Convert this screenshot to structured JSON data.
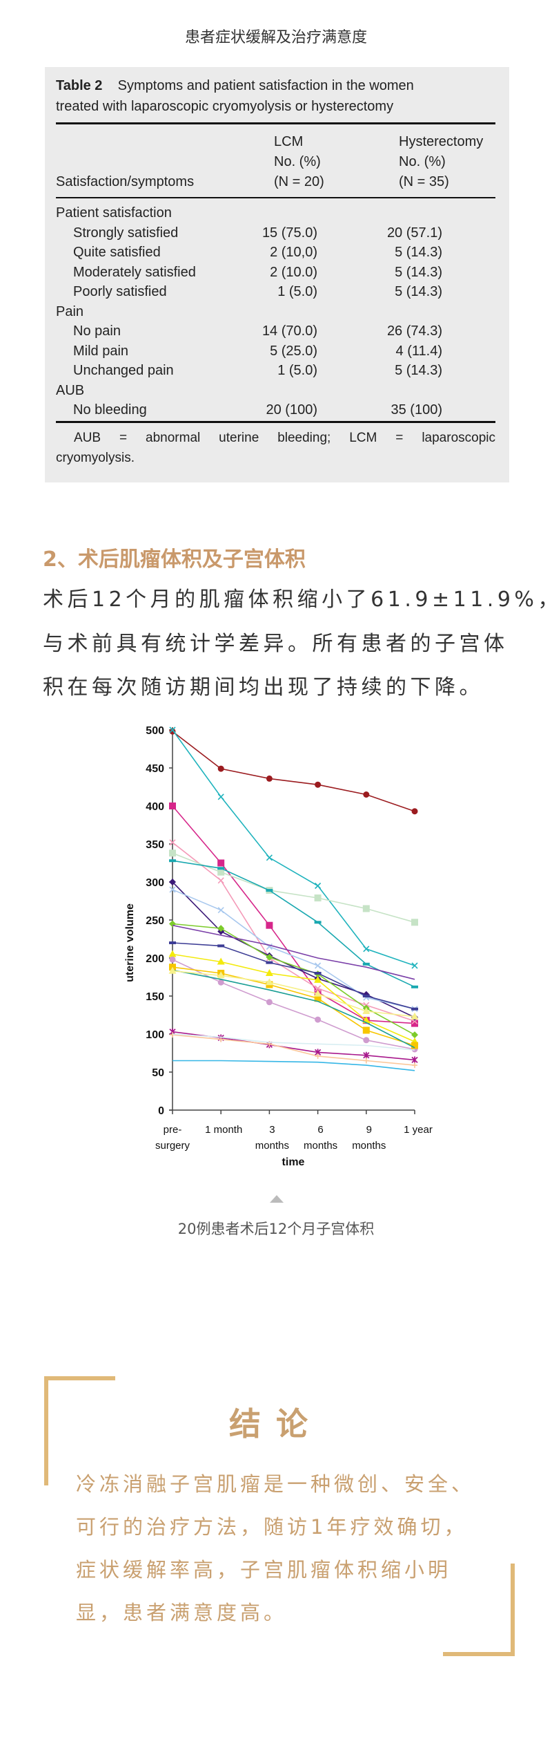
{
  "page_title": "患者症状缓解及治疗满意度",
  "table": {
    "caption_label": "Table 2",
    "caption_line1": "Symptoms and patient satisfaction in the women",
    "caption_line2": "treated with laparoscopic cryomyolysis or hysterectomy",
    "col_header_label": "Satisfaction/symptoms",
    "col_lcm": [
      "LCM",
      "No. (%)",
      "(N = 20)"
    ],
    "col_hyst": [
      "Hysterectomy",
      "No. (%)",
      "(N = 35)"
    ],
    "rows": [
      {
        "label": "Patient satisfaction",
        "group": true,
        "lcm": "",
        "hyst": ""
      },
      {
        "label": "Strongly satisfied",
        "group": false,
        "lcm": "15 (75.0)",
        "hyst": "20 (57.1)"
      },
      {
        "label": "Quite satisfied",
        "group": false,
        "lcm": "2 (10,0)",
        "hyst": "5 (14.3)"
      },
      {
        "label": "Moderately satisfied",
        "group": false,
        "lcm": "2 (10.0)",
        "hyst": "5 (14.3)"
      },
      {
        "label": "Poorly satisfied",
        "group": false,
        "lcm": "1 (5.0)",
        "hyst": "5 (14.3)"
      },
      {
        "label": "Pain",
        "group": true,
        "lcm": "",
        "hyst": ""
      },
      {
        "label": "No pain",
        "group": false,
        "lcm": "14 (70.0)",
        "hyst": "26 (74.3)"
      },
      {
        "label": "Mild pain",
        "group": false,
        "lcm": "5 (25.0)",
        "hyst": "4 (11.4)"
      },
      {
        "label": "Unchanged pain",
        "group": false,
        "lcm": "1 (5.0)",
        "hyst": "5 (14.3)"
      },
      {
        "label": "AUB",
        "group": true,
        "lcm": "",
        "hyst": ""
      },
      {
        "label": "No bleeding",
        "group": false,
        "lcm": "20 (100)",
        "hyst": "35 (100)"
      }
    ],
    "footnote_line1": "AUB = abnormal uterine bleeding; LCM = laparoscopic",
    "footnote_line2": "cryomyolysis."
  },
  "section2": {
    "heading": "2、术后肌瘤体积及子宫体积",
    "lines": [
      "术后12个月的肌瘤体积缩小了61.9±11.9%，",
      "与术前具有统计学差异。所有患者的子宫体",
      "积在每次随访期间均出现了持续的下降。"
    ]
  },
  "chart_data": {
    "type": "line",
    "title": "",
    "xlabel": "time",
    "ylabel": "uterine volume",
    "categories": [
      "pre-\nsurgery",
      "1 month",
      "3\nmonths",
      "6\nmonths",
      "9\nmonths",
      "1 year"
    ],
    "ylim": [
      0,
      500
    ],
    "yticks": [
      0,
      50,
      100,
      150,
      200,
      250,
      300,
      350,
      400,
      450,
      500
    ],
    "grid": false,
    "legend": "none",
    "series": [
      {
        "color": "#9b1b1f",
        "marker": "circle",
        "values": [
          498,
          449,
          436,
          428,
          415,
          393
        ]
      },
      {
        "color": "#1fb3bd",
        "marker": "x",
        "values": [
          500,
          412,
          332,
          295,
          212,
          190
        ]
      },
      {
        "color": "#d6268a",
        "marker": "square",
        "values": [
          400,
          325,
          243,
          155,
          118,
          114
        ]
      },
      {
        "color": "#f49ab8",
        "marker": "x",
        "values": [
          352,
          302,
          200,
          160,
          138,
          117
        ]
      },
      {
        "color": "#c6e3c6",
        "marker": "square",
        "values": [
          338,
          313,
          289,
          279,
          265,
          247
        ]
      },
      {
        "color": "#19a8b0",
        "marker": "dash",
        "values": [
          328,
          318,
          289,
          247,
          192,
          162
        ]
      },
      {
        "color": "#3b1a78",
        "marker": "diamond",
        "values": [
          300,
          235,
          203,
          173,
          152,
          122
        ]
      },
      {
        "color": "#a8c8ee",
        "marker": "x",
        "values": [
          290,
          263,
          215,
          190,
          148,
          133
        ]
      },
      {
        "color": "#7ccb2a",
        "marker": "diamond",
        "values": [
          245,
          239,
          201,
          179,
          134,
          99
        ]
      },
      {
        "color": "#7a3fa8",
        "marker": "none",
        "values": [
          243,
          230,
          217,
          200,
          188,
          172
        ]
      },
      {
        "color": "#3d3d95",
        "marker": "dash",
        "values": [
          220,
          216,
          194,
          180,
          150,
          133
        ]
      },
      {
        "color": "#f3ea0c",
        "marker": "triangle",
        "values": [
          205,
          195,
          180,
          171,
          118,
          90
        ]
      },
      {
        "color": "#cf9ccf",
        "marker": "circle",
        "values": [
          198,
          168,
          142,
          119,
          92,
          80
        ]
      },
      {
        "color": "#f7c600",
        "marker": "square",
        "values": [
          188,
          180,
          165,
          147,
          105,
          85
        ]
      },
      {
        "color": "#1a9e94",
        "marker": "none",
        "values": [
          184,
          172,
          158,
          143,
          115,
          82
        ]
      },
      {
        "color": "#f6f08a",
        "marker": "triangle",
        "values": [
          183,
          177,
          168,
          153,
          130,
          123
        ]
      },
      {
        "color": "#a8188c",
        "marker": "asterisk",
        "values": [
          103,
          95,
          86,
          76,
          72,
          66
        ]
      },
      {
        "color": "#fbc79a",
        "marker": "plus",
        "values": [
          99,
          93,
          87,
          71,
          65,
          59
        ]
      },
      {
        "color": "#d8eef2",
        "marker": "none",
        "values": [
          100,
          96,
          89,
          87,
          85,
          79
        ]
      },
      {
        "color": "#35b6e6",
        "marker": "none",
        "values": [
          65,
          65,
          64,
          63,
          59,
          52
        ]
      }
    ]
  },
  "figure_caption": "20例患者术后12个月子宫体积",
  "conclusion": {
    "title": "结论",
    "lines": [
      "冷冻消融子宫肌瘤是一种微创、安全、",
      "可行的治疗方法，随访1年疗效确切，",
      "症状缓解率高，子宫肌瘤体积缩小明",
      "显，患者满意度高。"
    ],
    "accent_color": "#e0b978",
    "text_color": "#c9a070"
  }
}
